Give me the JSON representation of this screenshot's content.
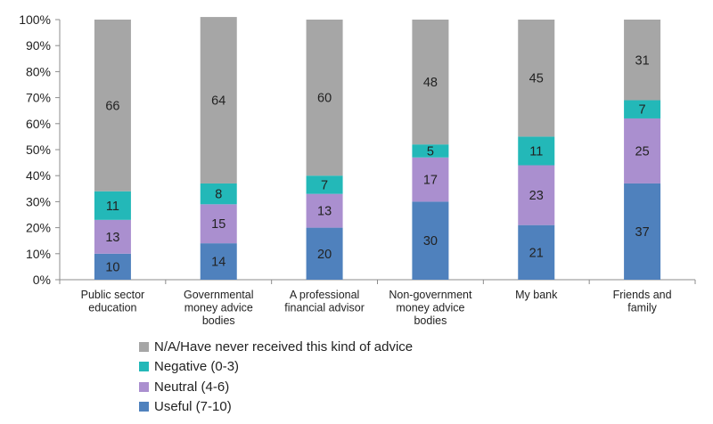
{
  "chart_data": {
    "type": "bar",
    "stacked": true,
    "percent": true,
    "categories": [
      [
        "Public sector",
        "education"
      ],
      [
        "Governmental",
        "money advice",
        "bodies"
      ],
      [
        "A professional",
        "financial advisor"
      ],
      [
        "Non-government",
        "money advice",
        "bodies"
      ],
      [
        "My bank"
      ],
      [
        "Friends and",
        "family"
      ]
    ],
    "series": [
      {
        "name": "Useful (7-10)",
        "color": "#4F81BD",
        "values": [
          10,
          14,
          20,
          30,
          21,
          37
        ]
      },
      {
        "name": "Neutral (4-6)",
        "color": "#AA8FCF",
        "values": [
          13,
          15,
          13,
          17,
          23,
          25
        ]
      },
      {
        "name": "Negative (0-3)",
        "color": "#23B8B8",
        "values": [
          11,
          8,
          7,
          5,
          11,
          7
        ]
      },
      {
        "name": "N/A/Have never received this kind of advice",
        "color": "#A6A6A6",
        "values": [
          66,
          64,
          60,
          48,
          45,
          31
        ]
      }
    ],
    "yticks": [
      "0%",
      "10%",
      "20%",
      "30%",
      "40%",
      "50%",
      "60%",
      "70%",
      "80%",
      "90%",
      "100%"
    ],
    "ylim": [
      0,
      100
    ],
    "legend_position": "bottom",
    "legend_order": [
      3,
      2,
      1,
      0
    ],
    "grid": false
  }
}
